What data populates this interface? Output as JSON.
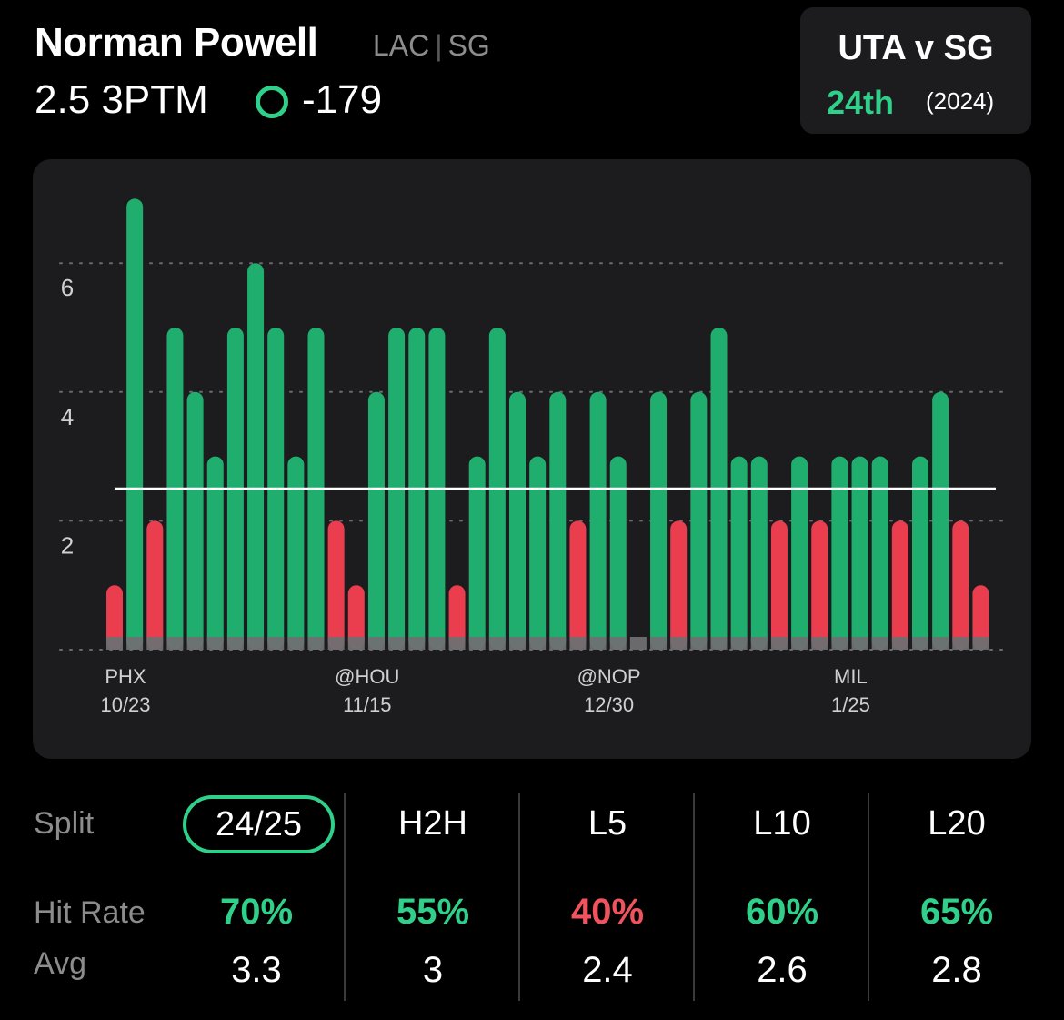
{
  "player": {
    "name": "Norman Powell",
    "team": "LAC",
    "position": "SG",
    "line": "2.5 3PTM",
    "odds": "-179"
  },
  "matchup": {
    "title": "UTA v SG",
    "rank": "24th",
    "year": "(2024)"
  },
  "chart_data": {
    "type": "bar",
    "threshold": 2.5,
    "ylim": [
      0,
      7
    ],
    "yticks": [
      "2",
      "4",
      "6"
    ],
    "grid": "dotted horizontal",
    "values": [
      1,
      7,
      2,
      5,
      4,
      3,
      5,
      6,
      5,
      3,
      5,
      2,
      1,
      4,
      5,
      5,
      5,
      1,
      3,
      5,
      4,
      3,
      4,
      2,
      4,
      3,
      0,
      4,
      2,
      4,
      5,
      3,
      3,
      2,
      3,
      2,
      3,
      3,
      3,
      2,
      3,
      4,
      2,
      1
    ],
    "x_labels": [
      {
        "index": 0,
        "opponent": "PHX",
        "date": "10/23"
      },
      {
        "index": 12,
        "opponent": "@HOU",
        "date": "11/15"
      },
      {
        "index": 24,
        "opponent": "@NOP",
        "date": "12/30"
      },
      {
        "index": 36,
        "opponent": "MIL",
        "date": "1/25"
      }
    ],
    "colors": {
      "over": "#1fae6e",
      "under": "#ea3e4e",
      "base": "#6f6f72",
      "line": "#ffffff"
    }
  },
  "stats": {
    "split_label": "Split",
    "hit_rate_label": "Hit Rate",
    "avg_label": "Avg",
    "columns": [
      {
        "label": "24/25",
        "hit_rate": "70%",
        "avg": "3.3",
        "hit_color": "#2fd08a",
        "active": true
      },
      {
        "label": "H2H",
        "hit_rate": "55%",
        "avg": "3",
        "hit_color": "#2fd08a",
        "active": false
      },
      {
        "label": "L5",
        "hit_rate": "40%",
        "avg": "2.4",
        "hit_color": "#f0525e",
        "active": false
      },
      {
        "label": "L10",
        "hit_rate": "60%",
        "avg": "2.6",
        "hit_color": "#2fd08a",
        "active": false
      },
      {
        "label": "L20",
        "hit_rate": "65%",
        "avg": "2.8",
        "hit_color": "#2fd08a",
        "active": false
      }
    ]
  }
}
